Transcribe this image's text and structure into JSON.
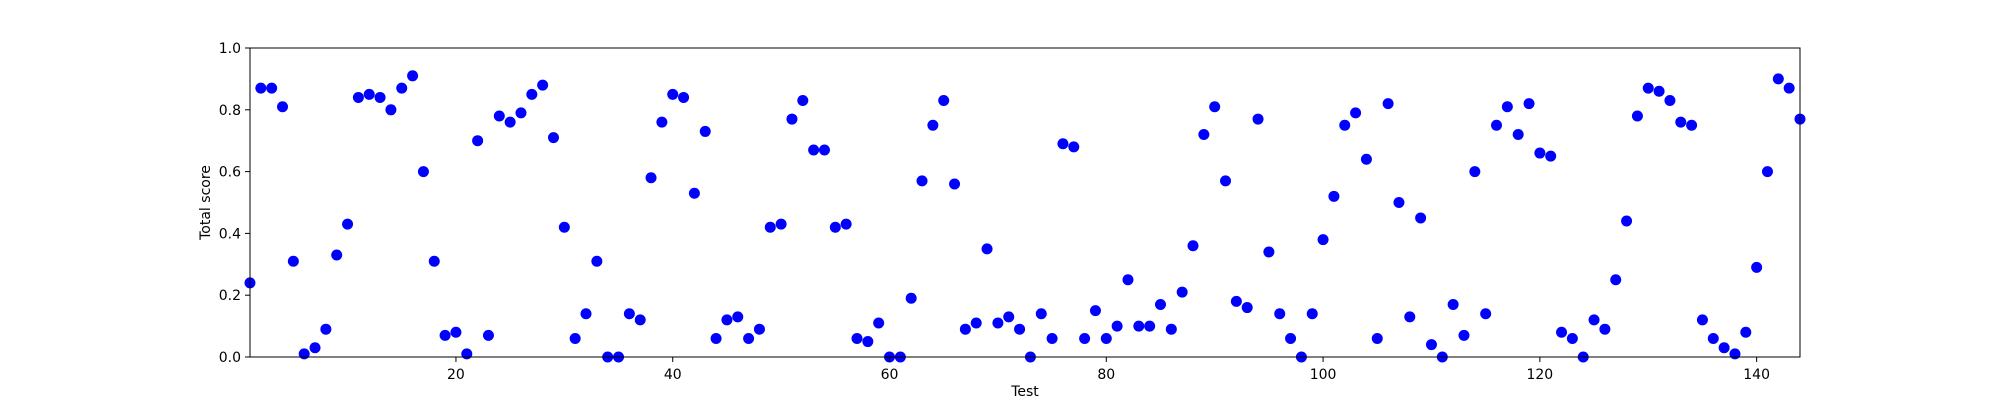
{
  "chart_data": {
    "type": "scatter",
    "title": "",
    "xlabel": "Test",
    "ylabel": "Total score",
    "xlim": [
      1,
      144
    ],
    "ylim": [
      0.0,
      1.0
    ],
    "grid": false,
    "marker_color": "#0000ff",
    "x_ticks": [
      20,
      40,
      60,
      80,
      100,
      120,
      140
    ],
    "y_ticks": [
      0.0,
      0.2,
      0.4,
      0.6,
      0.8,
      1.0
    ],
    "x_tick_labels": [
      "20",
      "40",
      "60",
      "80",
      "100",
      "120",
      "140"
    ],
    "y_tick_labels": [
      "0.0",
      "0.2",
      "0.4",
      "0.6",
      "0.8",
      "1.0"
    ],
    "series": [
      {
        "x": [
          1,
          2,
          3,
          4,
          5,
          6,
          7,
          8,
          9,
          10,
          11,
          12,
          13,
          14,
          15,
          16,
          17,
          18,
          19,
          20,
          21,
          22,
          23,
          24,
          25,
          26,
          27,
          28,
          29,
          30,
          31,
          32,
          33,
          34,
          35,
          36,
          37,
          38,
          39,
          40,
          41,
          42,
          43,
          44,
          45,
          46,
          47,
          48,
          49,
          50,
          51,
          52,
          53,
          54,
          55,
          56,
          57,
          58,
          59,
          60,
          61,
          62,
          63,
          64,
          65,
          66,
          67,
          68,
          69,
          70,
          71,
          72,
          73,
          74,
          75,
          76,
          77,
          78,
          79,
          80,
          81,
          82,
          83,
          84,
          85,
          86,
          87,
          88,
          89,
          90,
          91,
          92,
          93,
          94,
          95,
          96,
          97,
          98,
          99,
          100,
          101,
          102,
          103,
          104,
          105,
          106,
          107,
          108,
          109,
          110,
          111,
          112,
          113,
          114,
          115,
          116,
          117,
          118,
          119,
          120,
          121,
          122,
          123,
          124,
          125,
          126,
          127,
          128,
          129,
          130,
          131,
          132,
          133,
          134,
          135,
          136,
          137,
          138,
          139,
          140,
          141,
          142,
          143,
          144
        ],
        "y": [
          0.24,
          0.87,
          0.87,
          0.81,
          0.31,
          0.01,
          0.03,
          0.09,
          0.33,
          0.43,
          0.84,
          0.85,
          0.84,
          0.8,
          0.87,
          0.91,
          0.6,
          0.31,
          0.07,
          0.08,
          0.01,
          0.7,
          0.07,
          0.78,
          0.76,
          0.79,
          0.85,
          0.88,
          0.71,
          0.42,
          0.06,
          0.14,
          0.31,
          0.0,
          0.0,
          0.14,
          0.12,
          0.58,
          0.76,
          0.85,
          0.84,
          0.53,
          0.73,
          0.06,
          0.12,
          0.13,
          0.06,
          0.09,
          0.42,
          0.43,
          0.77,
          0.83,
          0.67,
          0.67,
          0.42,
          0.43,
          0.06,
          0.05,
          0.11,
          0.0,
          0.0,
          0.19,
          0.57,
          0.75,
          0.83,
          0.56,
          0.09,
          0.11,
          0.35,
          0.11,
          0.13,
          0.09,
          0.0,
          0.14,
          0.06,
          0.69,
          0.68,
          0.06,
          0.15,
          0.06,
          0.1,
          0.25,
          0.1,
          0.1,
          0.17,
          0.09,
          0.21,
          0.36,
          0.72,
          0.81,
          0.57,
          0.18,
          0.16,
          0.77,
          0.34,
          0.14,
          0.06,
          0.0,
          0.14,
          0.38,
          0.52,
          0.75,
          0.79,
          0.64,
          0.06,
          0.82,
          0.5,
          0.13,
          0.45,
          0.04,
          0.0,
          0.17,
          0.07,
          0.6,
          0.14,
          0.75,
          0.81,
          0.72,
          0.82,
          0.66,
          0.65,
          0.08,
          0.06,
          0.0,
          0.12,
          0.09,
          0.25,
          0.44,
          0.78,
          0.87,
          0.86,
          0.83,
          0.76,
          0.75,
          0.12,
          0.06,
          0.03,
          0.01,
          0.08,
          0.29,
          0.6,
          0.9,
          0.87,
          0.77
        ]
      }
    ]
  }
}
